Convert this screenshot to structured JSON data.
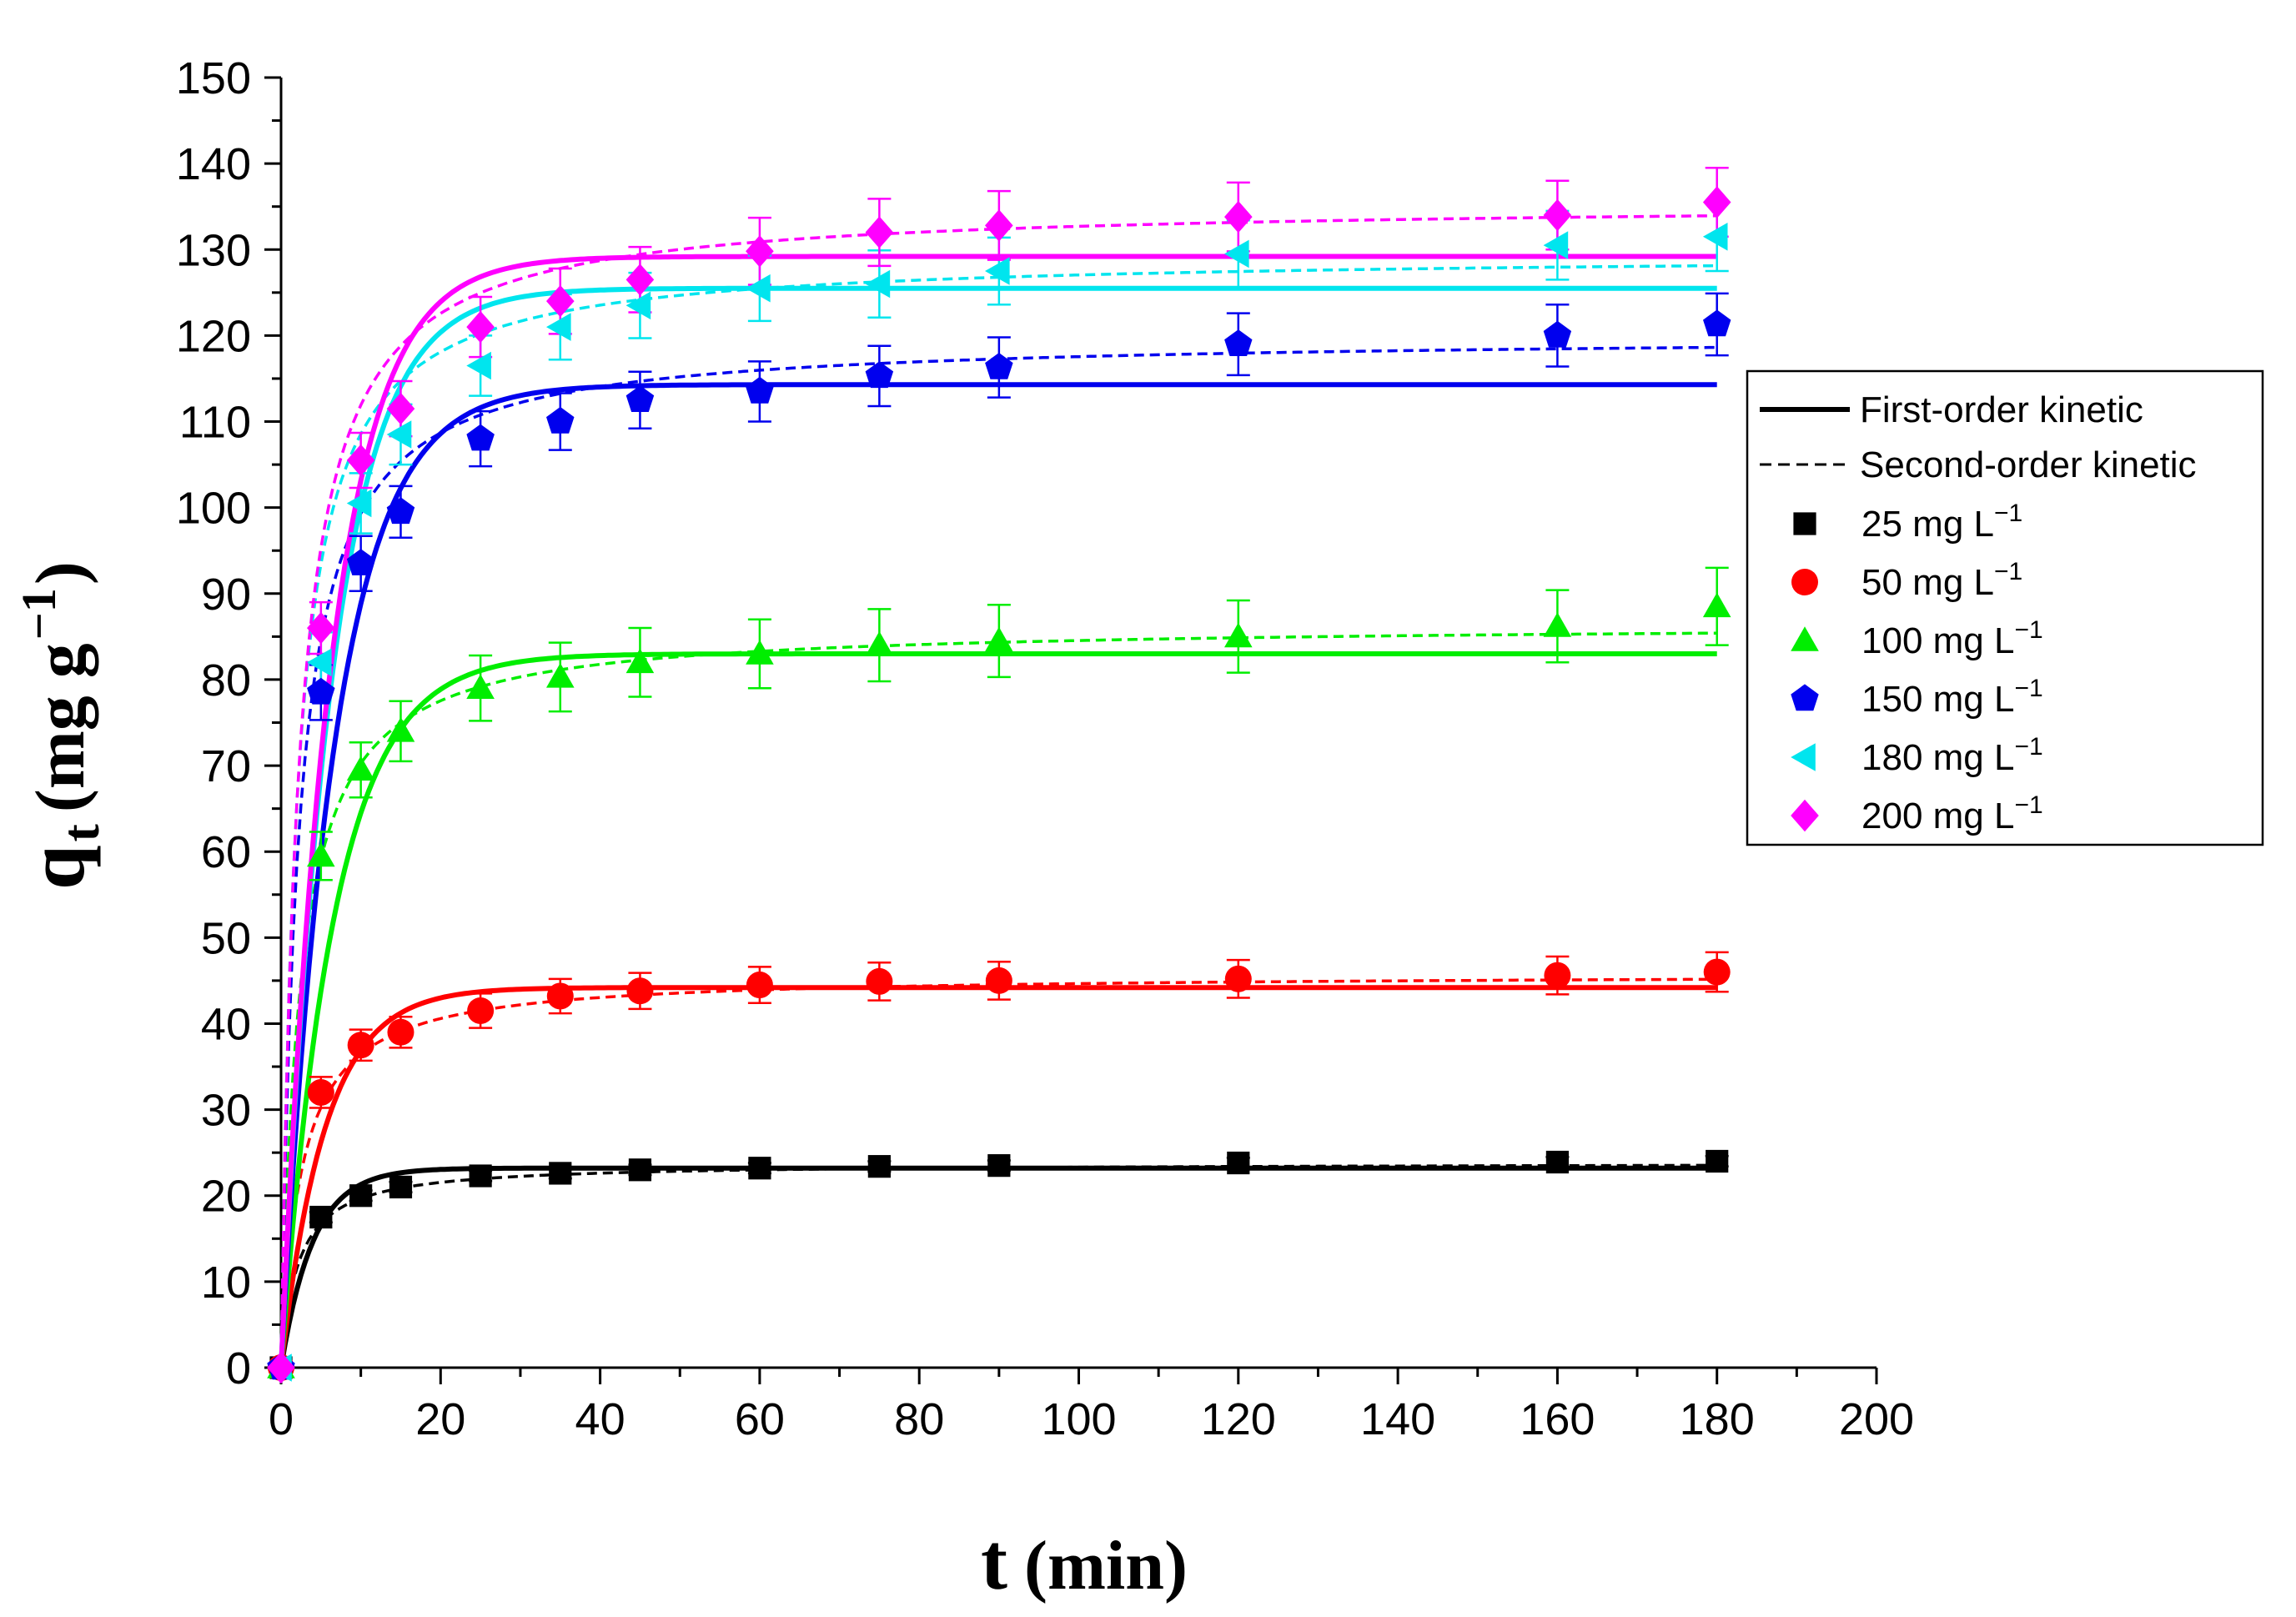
{
  "chart_data": {
    "type": "scatter",
    "title": "",
    "xlabel": {
      "main": "t",
      "unit": "(min)"
    },
    "ylabel": {
      "main": "q",
      "sub": "t",
      "unit_pre": "(mg g",
      "unit_sup": "−1",
      "unit_post": ")"
    },
    "xlim": [
      0,
      200
    ],
    "ylim": [
      0,
      150
    ],
    "xticks": [
      0,
      20,
      40,
      60,
      80,
      100,
      120,
      140,
      160,
      180,
      200
    ],
    "yticks": [
      0,
      10,
      20,
      30,
      40,
      50,
      60,
      70,
      80,
      90,
      100,
      110,
      120,
      130,
      140,
      150
    ],
    "grid": false,
    "legend_position": "right",
    "legend_lines": [
      {
        "label": "First-order kinetic",
        "style": "solid"
      },
      {
        "label": "Second-order kinetic",
        "style": "dashed"
      }
    ],
    "x": [
      0,
      5,
      10,
      15,
      25,
      35,
      45,
      60,
      75,
      90,
      120,
      160,
      180
    ],
    "series": [
      {
        "name": "25 mg L",
        "sup": "−1",
        "color": "#000000",
        "marker": "square",
        "values": [
          0,
          17.5,
          20.0,
          21.0,
          22.3,
          22.6,
          23.0,
          23.2,
          23.4,
          23.5,
          23.8,
          23.9,
          24.0
        ],
        "errors": [
          0,
          0.6,
          0.6,
          0.6,
          0.6,
          0.6,
          0.6,
          0.6,
          0.6,
          0.6,
          0.6,
          0.6,
          0.6
        ],
        "pfo": {
          "qe": 23.2,
          "k1": 0.25
        },
        "pso": {
          "qe": 23.8,
          "k2": 0.02
        }
      },
      {
        "name": "50 mg L",
        "sup": "−1",
        "color": "#ff0000",
        "marker": "circle",
        "values": [
          0,
          32.0,
          37.5,
          39.0,
          41.5,
          43.2,
          43.8,
          44.5,
          44.9,
          45.0,
          45.2,
          45.6,
          46.0
        ],
        "errors": [
          0,
          1.8,
          1.8,
          1.8,
          2.0,
          2.0,
          2.1,
          2.1,
          2.2,
          2.2,
          2.2,
          2.2,
          2.3
        ],
        "pfo": {
          "qe": 44.2,
          "k1": 0.18
        },
        "pso": {
          "qe": 45.8,
          "k2": 0.0085
        }
      },
      {
        "name": "100 mg L",
        "sup": "−1",
        "color": "#00ee00",
        "marker": "triangle",
        "values": [
          0,
          59.5,
          69.5,
          74.0,
          79.0,
          80.3,
          82.0,
          83.0,
          84.0,
          84.5,
          85.0,
          86.2,
          88.5
        ],
        "errors": [
          0,
          2.8,
          3.2,
          3.5,
          3.8,
          4.0,
          4.0,
          4.0,
          4.2,
          4.2,
          4.2,
          4.2,
          4.5
        ],
        "pfo": {
          "qe": 83.0,
          "k1": 0.15
        },
        "pso": {
          "qe": 86.5,
          "k2": 0.005
        }
      },
      {
        "name": "150 mg L",
        "sup": "−1",
        "color": "#0000ee",
        "marker": "pentagon",
        "values": [
          0,
          78.5,
          93.5,
          99.5,
          108.0,
          110.0,
          112.5,
          113.5,
          115.3,
          116.3,
          119.0,
          120.0,
          121.3
        ],
        "errors": [
          0,
          3.2,
          3.2,
          3.0,
          3.2,
          3.3,
          3.3,
          3.5,
          3.5,
          3.5,
          3.6,
          3.6,
          3.6
        ],
        "pfo": {
          "qe": 114.3,
          "k1": 0.15
        },
        "pso": {
          "qe": 120.0,
          "k2": 0.004
        }
      },
      {
        "name": "180 mg L",
        "sup": "−1",
        "color": "#00e5ee",
        "marker": "triangle-left",
        "values": [
          0,
          82.0,
          100.5,
          108.5,
          116.5,
          121.0,
          123.5,
          125.5,
          126.0,
          127.5,
          129.5,
          130.5,
          131.5
        ],
        "errors": [
          0,
          3.5,
          3.5,
          3.5,
          3.5,
          3.8,
          3.8,
          3.8,
          3.9,
          3.9,
          3.9,
          4.0,
          4.0
        ],
        "pfo": {
          "qe": 125.5,
          "k1": 0.16
        },
        "pso": {
          "qe": 129.5,
          "k2": 0.004
        }
      },
      {
        "name": "200 mg L",
        "sup": "−1",
        "color": "#ff00ff",
        "marker": "diamond",
        "values": [
          0,
          86.0,
          105.5,
          111.5,
          121.0,
          124.0,
          126.5,
          129.8,
          132.0,
          132.8,
          133.8,
          134.0,
          135.5
        ],
        "errors": [
          0,
          3.0,
          3.2,
          3.2,
          3.5,
          3.8,
          3.8,
          3.9,
          3.9,
          4.0,
          4.0,
          4.0,
          4.0
        ],
        "pfo": {
          "qe": 129.2,
          "k1": 0.16
        },
        "pso": {
          "qe": 135.5,
          "k2": 0.0035
        }
      }
    ]
  }
}
